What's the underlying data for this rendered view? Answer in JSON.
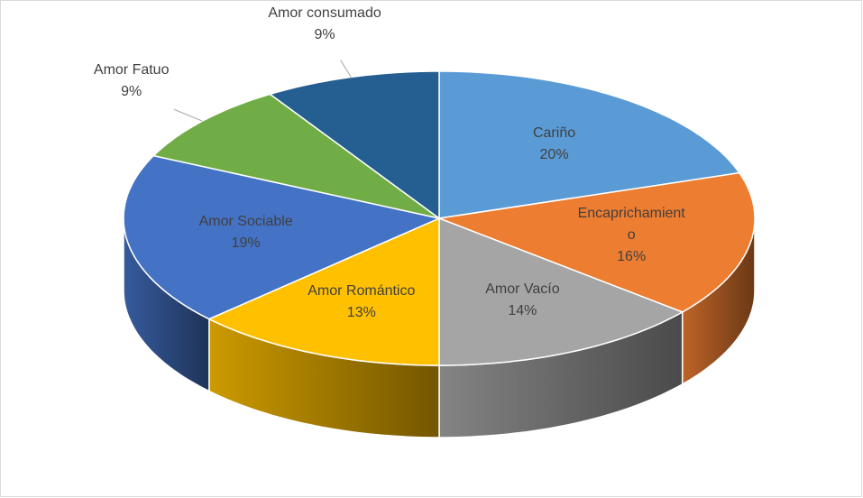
{
  "chart_data": {
    "type": "pie3d",
    "categories": [
      "Cariño",
      "Encaprichamiento",
      "Amor Vacío",
      "Amor Romántico",
      "Amor Sociable",
      "Amor Fatuo",
      "Amor consumado"
    ],
    "values": [
      20,
      16,
      14,
      13,
      19,
      9,
      9
    ],
    "value_labels": [
      "20%",
      "16%",
      "14%",
      "13%",
      "19%",
      "9%",
      "9%"
    ],
    "colors": [
      "#5b9bd5",
      "#ed7d31",
      "#a5a5a5",
      "#ffc000",
      "#4472c4",
      "#70ad47",
      "#255e91"
    ]
  }
}
